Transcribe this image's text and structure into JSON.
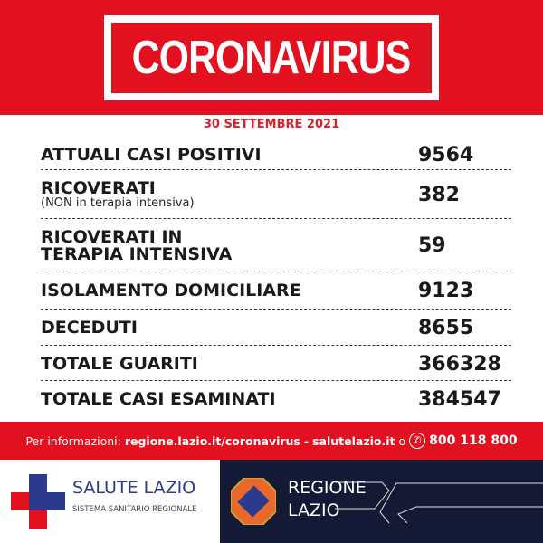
{
  "header": {
    "title": "CORONAVIRUS",
    "date": "30 SETTEMBRE 2021"
  },
  "rows": [
    {
      "label": "ATTUALI CASI POSITIVI",
      "value": "9564"
    },
    {
      "label": "RICOVERATI",
      "sublabel": "(NON in terapia intensiva)",
      "value": "382"
    },
    {
      "label": "RICOVERATI IN",
      "label2": "TERAPIA INTENSIVA",
      "value": "59"
    },
    {
      "label": "ISOLAMENTO DOMICILIARE",
      "value": "9123"
    },
    {
      "label": "DECEDUTI",
      "value": "8655"
    },
    {
      "label": "TOTALE GUARITI",
      "value": "366328"
    },
    {
      "label": "TOTALE CASI ESAMINATI",
      "value": "384547"
    }
  ],
  "footer": {
    "prefix": "Per informazioni:",
    "link1": "regione.lazio.it/coronavirus",
    "sep": "-",
    "link2": "salutelazio.it",
    "or": "o",
    "phone": "800 118 800",
    "phone_icon": "phone-icon"
  },
  "logos": {
    "salute_title": "SALUTE LAZIO",
    "salute_sub": "SISTEMA SANITARIO REGIONALE",
    "regione_line1": "REGIONE",
    "regione_line2": "LAZIO"
  },
  "colors": {
    "red": "#e3101f",
    "navy": "#141a36",
    "blue": "#2b3a8c"
  }
}
